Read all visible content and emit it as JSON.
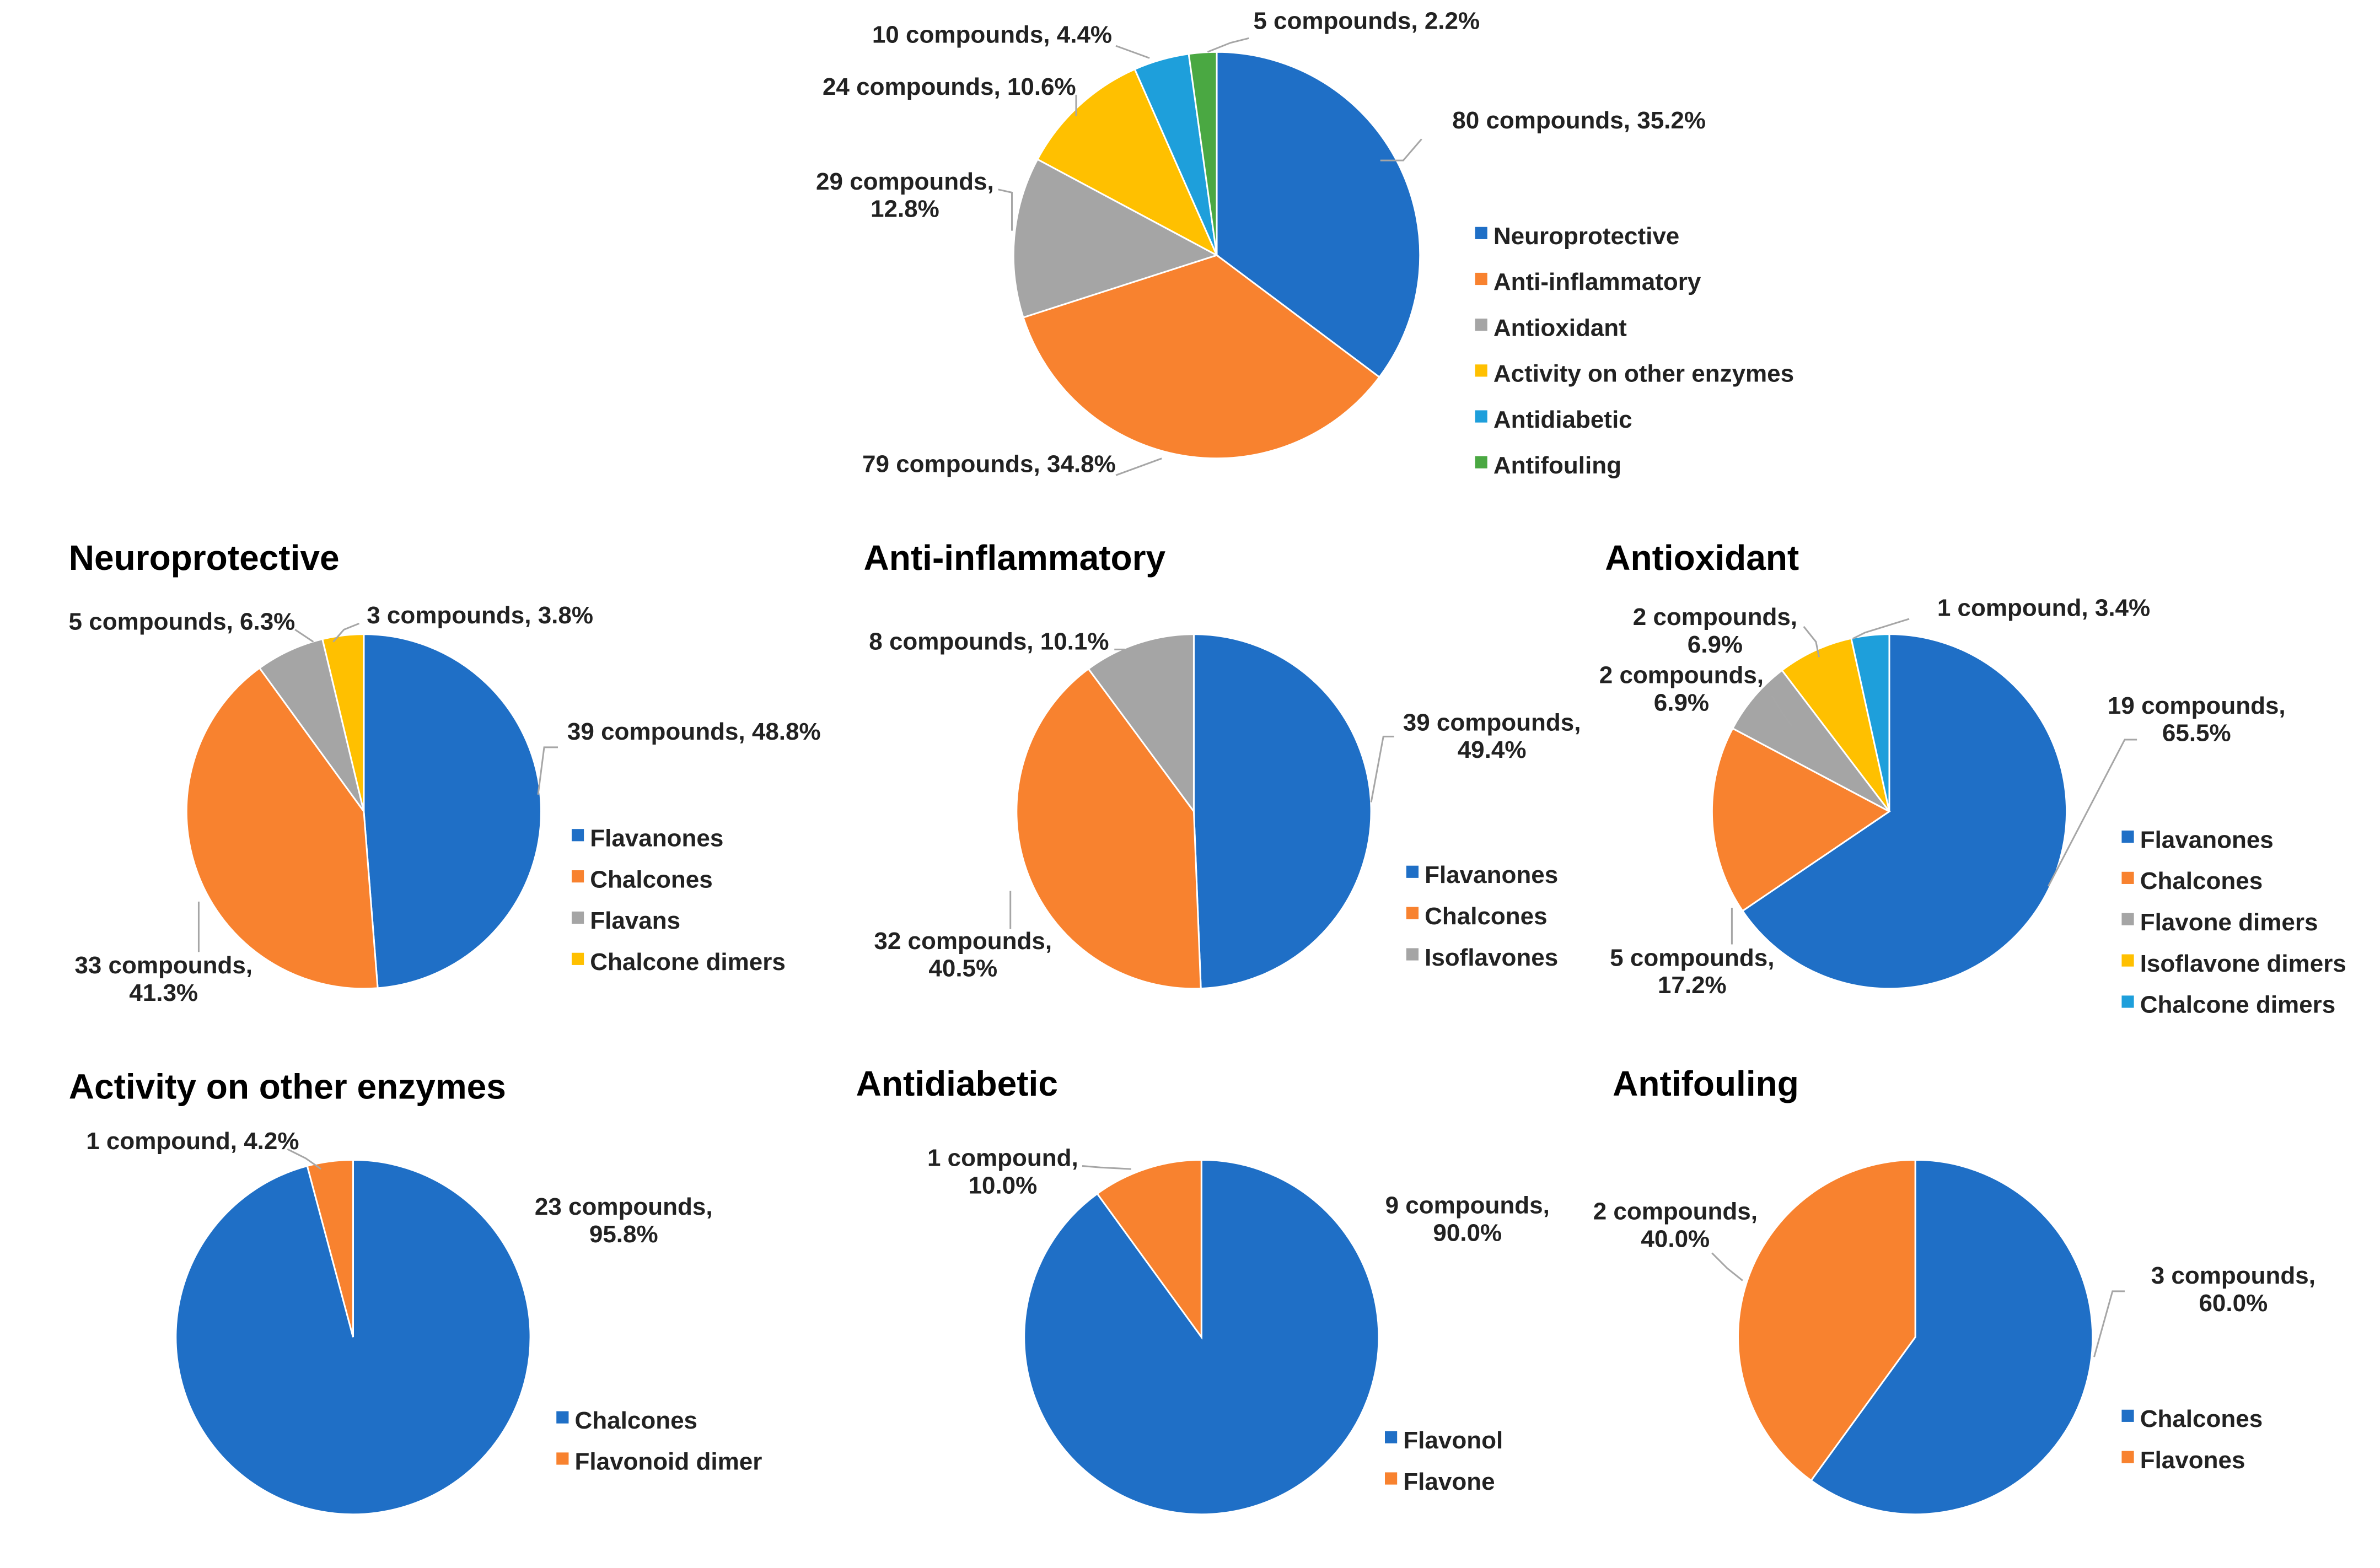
{
  "colors": {
    "blue": "#1f6fc6",
    "orange": "#f8822f",
    "gray": "#a5a5a5",
    "yellow": "#ffc000",
    "lightblue": "#1e9fdb",
    "green": "#4aa842"
  },
  "chart_data": [
    {
      "type": "pie",
      "title": "",
      "categories": [
        "Neuroprotective",
        "Anti-inflammatory",
        "Antioxidant",
        "Activity on other enzymes",
        "Antidiabetic",
        "Antifouling"
      ],
      "values": [
        80,
        79,
        29,
        24,
        10,
        5
      ],
      "percents": [
        35.2,
        34.8,
        12.8,
        10.6,
        4.4,
        2.2
      ],
      "colors": [
        "blue",
        "orange",
        "gray",
        "yellow",
        "lightblue",
        "green"
      ],
      "labels": [
        [
          "80 compounds, 35.2%"
        ],
        [
          "79 compounds, 34.8%"
        ],
        [
          "29 compounds,",
          "12.8%"
        ],
        [
          "24 compounds, 10.6%"
        ],
        [
          "10 compounds, 4.4%"
        ],
        [
          "5 compounds, 2.2%"
        ]
      ],
      "legend": "right"
    },
    {
      "type": "pie",
      "title": "Neuroprotective",
      "categories": [
        "Flavanones",
        "Chalcones",
        "Flavans",
        "Chalcone dimers"
      ],
      "values": [
        39,
        33,
        5,
        3
      ],
      "percents": [
        48.8,
        41.3,
        6.3,
        3.8
      ],
      "colors": [
        "blue",
        "orange",
        "gray",
        "yellow"
      ],
      "labels": [
        [
          "39 compounds, 48.8%"
        ],
        [
          "33 compounds,",
          "41.3%"
        ],
        [
          "5 compounds, 6.3%"
        ],
        [
          "3 compounds, 3.8%"
        ]
      ],
      "legend": "right"
    },
    {
      "type": "pie",
      "title": "Anti-inflammatory",
      "categories": [
        "Flavanones",
        "Chalcones",
        "Isoflavones"
      ],
      "values": [
        39,
        32,
        8
      ],
      "percents": [
        49.4,
        40.5,
        10.1
      ],
      "colors": [
        "blue",
        "orange",
        "gray"
      ],
      "labels": [
        [
          "39 compounds,",
          "49.4%"
        ],
        [
          "32 compounds,",
          "40.5%"
        ],
        [
          "8 compounds, 10.1%"
        ]
      ],
      "legend": "right"
    },
    {
      "type": "pie",
      "title": "Antioxidant",
      "categories": [
        "Flavanones",
        "Chalcones",
        "Flavone dimers",
        "Isoflavone dimers",
        "Chalcone dimers"
      ],
      "values": [
        19,
        5,
        2,
        2,
        1
      ],
      "percents": [
        65.5,
        17.2,
        6.9,
        6.9,
        3.4
      ],
      "colors": [
        "blue",
        "orange",
        "gray",
        "yellow",
        "lightblue"
      ],
      "labels": [
        [
          "19 compounds,",
          "65.5%"
        ],
        [
          "5 compounds,",
          "17.2%"
        ],
        [
          "2 compounds,",
          "6.9%"
        ],
        [
          "2 compounds,",
          "6.9%"
        ],
        [
          "1 compound, 3.4%"
        ]
      ],
      "legend": "right"
    },
    {
      "type": "pie",
      "title": "Activity on other enzymes",
      "categories": [
        "Chalcones",
        "Flavonoid dimer"
      ],
      "values": [
        23,
        1
      ],
      "percents": [
        95.8,
        4.2
      ],
      "colors": [
        "blue",
        "orange"
      ],
      "labels": [
        [
          "23 compounds,",
          "95.8%"
        ],
        [
          "1 compound, 4.2%"
        ]
      ],
      "legend": "right"
    },
    {
      "type": "pie",
      "title": "Antidiabetic",
      "categories": [
        "Flavonol",
        "Flavone"
      ],
      "values": [
        9,
        1
      ],
      "percents": [
        90.0,
        10.0
      ],
      "colors": [
        "blue",
        "orange"
      ],
      "labels": [
        [
          "9 compounds,",
          "90.0%"
        ],
        [
          "1 compound,",
          "10.0%"
        ]
      ],
      "legend": "right"
    },
    {
      "type": "pie",
      "title": "Antifouling",
      "categories": [
        "Chalcones",
        "Flavones"
      ],
      "values": [
        3,
        2
      ],
      "percents": [
        60.0,
        40.0
      ],
      "colors": [
        "blue",
        "orange"
      ],
      "labels": [
        [
          "3 compounds,",
          "60.0%"
        ],
        [
          "2 compounds,",
          "40.0%"
        ]
      ],
      "legend": "right"
    }
  ]
}
